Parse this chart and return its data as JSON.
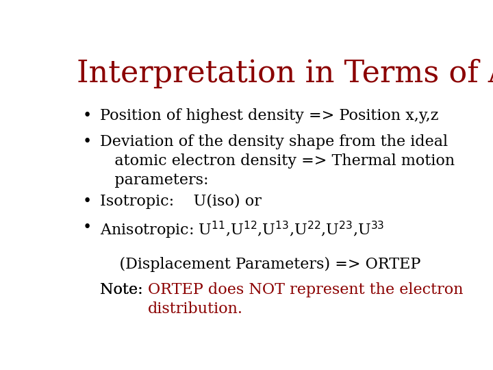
{
  "title": "Interpretation in Terms of Atoms",
  "title_color": "#8B0000",
  "title_fontsize": 32,
  "title_font": "serif",
  "background_color": "#FFFFFF",
  "bullet_color": "#000000",
  "red_color": "#8B0000",
  "bullet_fontsize": 16,
  "bullet_font": "serif",
  "note_prefix": "Note: ",
  "note_red": "ORTEP does NOT represent the electron\ndistribution.",
  "displacement_line": "    (Displacement Parameters) => ORTEP",
  "bullet1": "Position of highest density => Position x,y,z",
  "bullet2": "Deviation of the density shape from the ideal\n   atomic electron density => Thermal motion\n   parameters:",
  "bullet3": "Isotropic:    U(iso) or",
  "bullet4": "Anisotropic: U$^{11}$,U$^{12}$,U$^{13}$,U$^{22}$,U$^{23}$,U$^{33}$"
}
